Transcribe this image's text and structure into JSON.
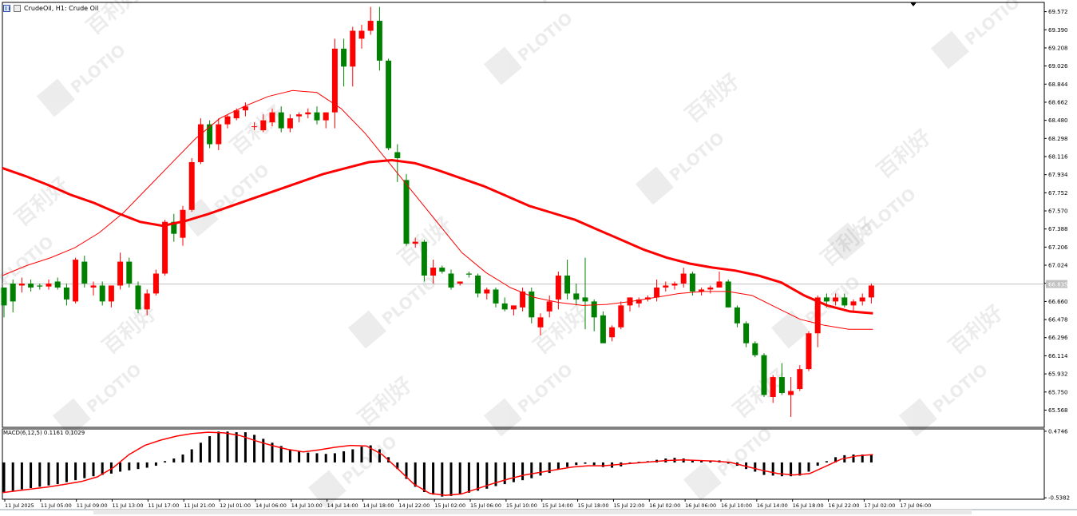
{
  "header": {
    "symbol_label": "CrudeOil, H1:  Crude Oil"
  },
  "macd_panel": {
    "label": "MACD(6,12,5) 0.1161 0.1029",
    "ticks": [
      "0.4746",
      "-0.5382"
    ]
  },
  "watermark": {
    "brand": "PLOTIO",
    "chinese": "百利好"
  },
  "colors": {
    "bull": "#ff0000",
    "bear": "#008000",
    "ma_fast": "#ff0000",
    "ma_slow": "#ff0000",
    "macd_signal": "#ff0000",
    "macd_hist": "#000000",
    "current_price_line": "#c0c0c0",
    "current_price_tag": "#c0c0c0"
  },
  "chart_data": {
    "type": "candlestick",
    "price_axis_ticks": [
      "69.572",
      "69.390",
      "69.208",
      "69.026",
      "68.844",
      "68.662",
      "68.480",
      "68.298",
      "68.116",
      "67.934",
      "67.752",
      "67.570",
      "67.388",
      "67.206",
      "67.024",
      "66.842",
      "66.660",
      "66.478",
      "66.296",
      "66.114",
      "65.932",
      "65.750",
      "65.568"
    ],
    "current_price": "66.835",
    "ylim": [
      65.395,
      69.665
    ],
    "time_labels": [
      "11 Jul 2025",
      "11 Jul 05:00",
      "11 Jul 09:00",
      "11 Jul 13:00",
      "11 Jul 17:00",
      "11 Jul 21:00",
      "12 Jul 01:00",
      "14 Jul 06:00",
      "14 Jul 10:00",
      "14 Jul 14:00",
      "14 Jul 18:00",
      "14 Jul 22:00",
      "15 Jul 02:00",
      "15 Jul 06:00",
      "15 Jul 10:00",
      "15 Jul 14:00",
      "15 Jul 18:00",
      "15 Jul 22:00",
      "16 Jul 02:00",
      "16 Jul 06:00",
      "16 Jul 10:00",
      "16 Jul 14:00",
      "16 Jul 18:00",
      "16 Jul 22:00",
      "17 Jul 02:00",
      "17 Jul 06:00"
    ],
    "candles": [
      [
        66.8,
        66.8,
        66.5,
        66.62
      ],
      [
        66.84,
        66.88,
        66.55,
        66.66
      ],
      [
        66.82,
        66.9,
        66.75,
        66.84
      ],
      [
        66.84,
        66.88,
        66.76,
        66.8
      ],
      [
        66.82,
        66.84,
        66.78,
        66.81
      ],
      [
        66.81,
        66.88,
        66.78,
        66.84
      ],
      [
        66.86,
        66.9,
        66.78,
        66.8
      ],
      [
        66.8,
        66.84,
        66.62,
        66.68
      ],
      [
        66.66,
        67.1,
        66.64,
        67.08
      ],
      [
        67.06,
        67.12,
        66.8,
        66.84
      ],
      [
        66.8,
        66.86,
        66.72,
        66.82
      ],
      [
        66.82,
        66.86,
        66.62,
        66.66
      ],
      [
        66.66,
        66.82,
        66.6,
        66.82
      ],
      [
        66.82,
        67.15,
        66.78,
        67.06
      ],
      [
        67.06,
        67.1,
        66.8,
        66.84
      ],
      [
        66.82,
        66.86,
        66.54,
        66.58
      ],
      [
        66.58,
        66.78,
        66.52,
        66.74
      ],
      [
        66.74,
        66.98,
        66.72,
        66.94
      ],
      [
        66.94,
        67.48,
        66.92,
        67.46
      ],
      [
        67.46,
        67.54,
        67.26,
        67.34
      ],
      [
        67.3,
        67.62,
        67.22,
        67.58
      ],
      [
        67.58,
        68.1,
        67.56,
        68.06
      ],
      [
        68.06,
        68.5,
        68.04,
        68.44
      ],
      [
        68.44,
        68.48,
        68.2,
        68.24
      ],
      [
        68.24,
        68.5,
        68.18,
        68.44
      ],
      [
        68.44,
        68.54,
        68.4,
        68.52
      ],
      [
        68.5,
        68.6,
        68.48,
        68.58
      ],
      [
        68.58,
        68.66,
        68.52,
        68.62
      ],
      [
        68.42,
        68.46,
        68.38,
        68.42
      ],
      [
        68.38,
        68.54,
        68.36,
        68.48
      ],
      [
        68.46,
        68.6,
        68.42,
        68.56
      ],
      [
        68.56,
        68.62,
        68.36,
        68.4
      ],
      [
        68.4,
        68.54,
        68.36,
        68.5
      ],
      [
        68.52,
        68.56,
        68.46,
        68.54
      ],
      [
        68.54,
        68.6,
        68.5,
        68.56
      ],
      [
        68.56,
        68.62,
        68.44,
        68.48
      ],
      [
        68.48,
        68.56,
        68.4,
        68.56
      ],
      [
        68.56,
        69.3,
        68.4,
        69.2
      ],
      [
        69.2,
        69.3,
        68.82,
        69.02
      ],
      [
        69.02,
        69.42,
        68.82,
        69.38
      ],
      [
        69.3,
        69.44,
        69.2,
        69.38
      ],
      [
        69.38,
        69.62,
        69.34,
        69.48
      ],
      [
        69.48,
        69.62,
        68.98,
        69.08
      ],
      [
        69.08,
        69.1,
        68.18,
        68.2
      ],
      [
        68.16,
        68.24,
        67.86,
        68.1
      ],
      [
        67.88,
        67.94,
        67.22,
        67.24
      ],
      [
        67.24,
        67.3,
        67.2,
        67.26
      ],
      [
        67.26,
        67.28,
        66.86,
        66.92
      ],
      [
        66.92,
        67.08,
        66.84,
        67.0
      ],
      [
        67.0,
        67.02,
        66.94,
        66.96
      ],
      [
        66.94,
        66.98,
        66.78,
        66.8
      ],
      [
        66.84,
        66.86,
        66.82,
        66.86
      ],
      [
        66.94,
        66.96,
        66.9,
        66.93
      ],
      [
        66.92,
        66.94,
        66.7,
        66.74
      ],
      [
        66.74,
        66.8,
        66.68,
        66.78
      ],
      [
        66.78,
        66.8,
        66.6,
        66.64
      ],
      [
        66.64,
        66.7,
        66.56,
        66.58
      ],
      [
        66.58,
        66.62,
        66.52,
        66.62
      ],
      [
        66.6,
        66.8,
        66.56,
        66.76
      ],
      [
        66.76,
        66.8,
        66.44,
        66.5
      ],
      [
        66.4,
        66.54,
        66.32,
        66.5
      ],
      [
        66.56,
        66.72,
        66.5,
        66.66
      ],
      [
        66.68,
        66.96,
        66.58,
        66.92
      ],
      [
        66.92,
        67.08,
        66.68,
        66.74
      ],
      [
        66.74,
        66.84,
        66.62,
        66.68
      ],
      [
        66.7,
        67.1,
        66.38,
        66.66
      ],
      [
        66.66,
        66.68,
        66.36,
        66.5
      ],
      [
        66.52,
        66.56,
        66.26,
        66.24
      ],
      [
        66.3,
        66.42,
        66.26,
        66.4
      ],
      [
        66.4,
        66.66,
        66.38,
        66.62
      ],
      [
        66.62,
        66.7,
        66.56,
        66.7
      ],
      [
        66.64,
        66.7,
        66.6,
        66.68
      ],
      [
        66.68,
        66.72,
        66.66,
        66.7
      ],
      [
        66.7,
        66.88,
        66.66,
        66.8
      ],
      [
        66.8,
        66.86,
        66.76,
        66.82
      ],
      [
        66.82,
        66.86,
        66.78,
        66.84
      ],
      [
        66.84,
        67.0,
        66.8,
        66.94
      ],
      [
        66.94,
        66.96,
        66.72,
        66.76
      ],
      [
        66.76,
        66.8,
        66.72,
        66.78
      ],
      [
        66.78,
        66.82,
        66.74,
        66.8
      ],
      [
        66.8,
        66.96,
        66.8,
        66.86
      ],
      [
        66.86,
        66.88,
        66.6,
        66.6
      ],
      [
        66.6,
        66.62,
        66.4,
        66.44
      ],
      [
        66.44,
        66.46,
        66.2,
        66.24
      ],
      [
        66.24,
        66.26,
        66.1,
        66.12
      ],
      [
        66.12,
        66.14,
        65.7,
        65.72
      ],
      [
        65.7,
        65.92,
        65.64,
        65.9
      ],
      [
        65.9,
        66.04,
        65.72,
        65.74
      ],
      [
        65.72,
        65.9,
        65.5,
        65.76
      ],
      [
        65.78,
        66.02,
        65.76,
        65.98
      ],
      [
        65.98,
        66.36,
        65.96,
        66.34
      ],
      [
        66.34,
        66.72,
        66.2,
        66.7
      ],
      [
        66.7,
        66.74,
        66.6,
        66.66
      ],
      [
        66.66,
        66.74,
        66.62,
        66.7
      ],
      [
        66.7,
        66.74,
        66.6,
        66.62
      ],
      [
        66.62,
        66.68,
        66.56,
        66.66
      ],
      [
        66.66,
        66.74,
        66.62,
        66.7
      ],
      [
        66.7,
        66.84,
        66.64,
        66.82
      ]
    ],
    "ma_fast": [
      66.92,
      67.02,
      67.1,
      67.2,
      67.35,
      67.55,
      67.8,
      68.05,
      68.3,
      68.5,
      68.62,
      68.72,
      68.78,
      68.76,
      68.6,
      68.35,
      68.05,
      67.75,
      67.45,
      67.15,
      66.95,
      66.8,
      66.7,
      66.65,
      66.62,
      66.63,
      66.66,
      66.7,
      66.74,
      66.76,
      66.76,
      66.72,
      66.6,
      66.48,
      66.42,
      66.38,
      66.38
    ],
    "ma_slow": [
      68.0,
      67.92,
      67.83,
      67.73,
      67.65,
      67.55,
      67.46,
      67.42,
      67.47,
      67.54,
      67.62,
      67.7,
      67.78,
      67.86,
      67.94,
      68.0,
      68.06,
      68.08,
      68.05,
      67.98,
      67.9,
      67.82,
      67.72,
      67.62,
      67.55,
      67.48,
      67.38,
      67.28,
      67.18,
      67.1,
      67.04,
      67.0,
      66.97,
      66.92,
      66.85,
      66.72,
      66.62,
      66.56,
      66.54
    ],
    "macd_hist": [
      -0.45,
      -0.43,
      -0.41,
      -0.39,
      -0.37,
      -0.35,
      -0.33,
      -0.3,
      -0.27,
      -0.24,
      -0.21,
      -0.19,
      -0.17,
      -0.14,
      -0.12,
      -0.1,
      -0.08,
      -0.05,
      0.02,
      0.06,
      0.12,
      0.2,
      0.3,
      0.4,
      0.47,
      0.47,
      0.46,
      0.46,
      0.42,
      0.36,
      0.3,
      0.25,
      0.2,
      0.17,
      0.15,
      0.14,
      0.13,
      0.14,
      0.17,
      0.2,
      0.24,
      0.26,
      0.2,
      0.08,
      -0.1,
      -0.25,
      -0.37,
      -0.45,
      -0.49,
      -0.52,
      -0.51,
      -0.48,
      -0.46,
      -0.43,
      -0.4,
      -0.36,
      -0.33,
      -0.3,
      -0.27,
      -0.24,
      -0.2,
      -0.16,
      -0.11,
      -0.07,
      -0.04,
      -0.02,
      -0.04,
      -0.07,
      -0.08,
      -0.06,
      -0.02,
      0.01,
      0.02,
      0.04,
      0.06,
      0.07,
      0.06,
      0.04,
      0.03,
      0.03,
      0.03,
      0.0,
      -0.05,
      -0.1,
      -0.14,
      -0.19,
      -0.2,
      -0.21,
      -0.21,
      -0.2,
      -0.14,
      -0.05,
      0.02,
      0.08,
      0.11,
      0.12,
      0.12,
      0.12
    ],
    "macd_signal": [
      -0.46,
      -0.43,
      -0.4,
      -0.37,
      -0.33,
      -0.29,
      -0.22,
      -0.08,
      0.12,
      0.26,
      0.34,
      0.4,
      0.44,
      0.46,
      0.45,
      0.41,
      0.33,
      0.26,
      0.2,
      0.16,
      0.19,
      0.23,
      0.26,
      0.25,
      0.12,
      -0.1,
      -0.33,
      -0.47,
      -0.5,
      -0.48,
      -0.4,
      -0.32,
      -0.25,
      -0.19,
      -0.15,
      -0.11,
      -0.07,
      -0.05,
      -0.05,
      -0.03,
      -0.01,
      0.01,
      0.03,
      0.04,
      0.03,
      0.02,
      0.0,
      -0.06,
      -0.12,
      -0.17,
      -0.19,
      -0.17,
      -0.06,
      0.05,
      0.1,
      0.12
    ]
  }
}
